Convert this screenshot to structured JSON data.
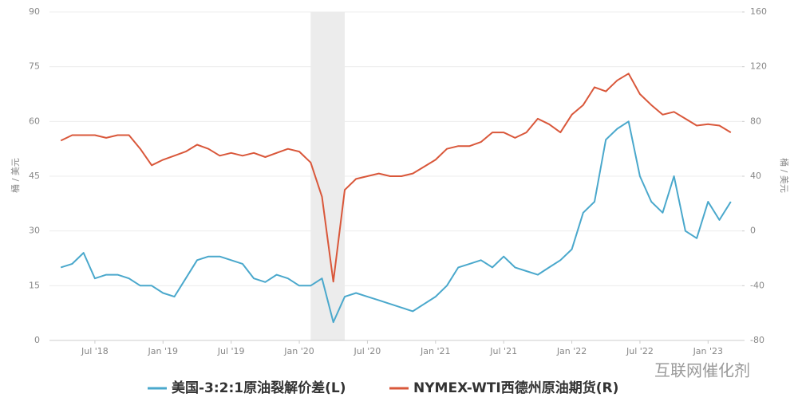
{
  "chart_data": {
    "type": "line",
    "y_label": "桶 / 美元",
    "y2_label": "桶 / 美元",
    "watermark": "互联网催化剂",
    "x": [
      "2018-04",
      "2018-05",
      "2018-06",
      "2018-07",
      "2018-08",
      "2018-09",
      "2018-10",
      "2018-11",
      "2018-12",
      "2019-01",
      "2019-02",
      "2019-03",
      "2019-04",
      "2019-05",
      "2019-06",
      "2019-07",
      "2019-08",
      "2019-09",
      "2019-10",
      "2019-11",
      "2019-12",
      "2020-01",
      "2020-02",
      "2020-03",
      "2020-04",
      "2020-05",
      "2020-06",
      "2020-07",
      "2020-08",
      "2020-09",
      "2020-10",
      "2020-11",
      "2020-12",
      "2021-01",
      "2021-02",
      "2021-03",
      "2021-04",
      "2021-05",
      "2021-06",
      "2021-07",
      "2021-08",
      "2021-09",
      "2021-10",
      "2021-11",
      "2021-12",
      "2022-01",
      "2022-02",
      "2022-03",
      "2022-04",
      "2022-05",
      "2022-06",
      "2022-07",
      "2022-08",
      "2022-09",
      "2022-10",
      "2022-11",
      "2022-12",
      "2023-01",
      "2023-02",
      "2023-03"
    ],
    "xlim": [
      "2018-03",
      "2023-04"
    ],
    "xticks": [
      {
        "value": "2018-07",
        "label": "Jul '18"
      },
      {
        "value": "2019-01",
        "label": "Jan '19"
      },
      {
        "value": "2019-07",
        "label": "Jul '19"
      },
      {
        "value": "2020-01",
        "label": "Jan '20"
      },
      {
        "value": "2020-07",
        "label": "Jul '20"
      },
      {
        "value": "2021-01",
        "label": "Jan '21"
      },
      {
        "value": "2021-07",
        "label": "Jul '21"
      },
      {
        "value": "2022-01",
        "label": "Jan '22"
      },
      {
        "value": "2022-07",
        "label": "Jul '22"
      },
      {
        "value": "2023-01",
        "label": "Jan '23"
      }
    ],
    "highlight_range": [
      "2020-02",
      "2020-05"
    ],
    "ylim": [
      0,
      90
    ],
    "yticks": [
      0,
      15,
      30,
      45,
      60,
      75,
      90
    ],
    "y2lim": [
      -80,
      160
    ],
    "y2ticks": [
      -80,
      -40,
      0,
      40,
      80,
      120,
      160
    ],
    "grid": true,
    "series": [
      {
        "name": "美国-3:2:1原油裂解价差(L)",
        "color": "#4aa8cc",
        "values": [
          20,
          21,
          24,
          17,
          18,
          18,
          17,
          15,
          15,
          13,
          12,
          17,
          22,
          23,
          23,
          22,
          21,
          17,
          16,
          18,
          17,
          15,
          15,
          17,
          5,
          12,
          13,
          12,
          11,
          10,
          9,
          8,
          10,
          12,
          15,
          20,
          21,
          22,
          20,
          23,
          20,
          19,
          18,
          20,
          22,
          25,
          35,
          38,
          55,
          58,
          60,
          45,
          38,
          35,
          45,
          30,
          28,
          38,
          33,
          38
        ]
      },
      {
        "name": "NYMEX-WTI西德州原油期货(R)",
        "color": "#d9573a",
        "axis": "y2",
        "values": [
          66,
          70,
          70,
          70,
          68,
          70,
          70,
          60,
          48,
          52,
          55,
          58,
          63,
          60,
          55,
          57,
          55,
          57,
          54,
          57,
          60,
          58,
          50,
          25,
          -37,
          30,
          38,
          40,
          42,
          40,
          40,
          42,
          47,
          52,
          60,
          62,
          62,
          65,
          72,
          72,
          68,
          72,
          82,
          78,
          72,
          85,
          92,
          105,
          102,
          110,
          115,
          100,
          92,
          85,
          87,
          82,
          77,
          78,
          77,
          72
        ]
      }
    ]
  }
}
